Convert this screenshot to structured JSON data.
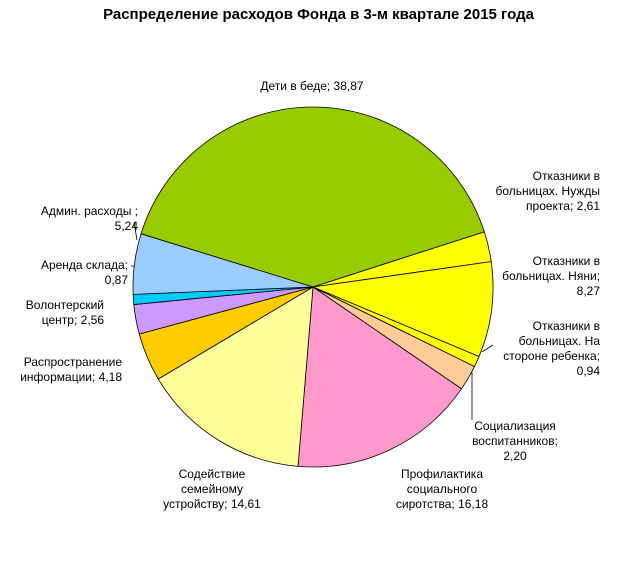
{
  "chart_data": {
    "type": "pie",
    "title": "Распределение расходов Фонда в 3-м квартале 2015 года",
    "slices": [
      {
        "name": "Дети в беде",
        "value": 38.87,
        "label": [
          "Дети в беде; 38,87"
        ],
        "color": "#99CC00"
      },
      {
        "name": "Отказники в больницах. Нужды проекта",
        "value": 2.61,
        "label": [
          "Отказники в",
          "больницах. Нужды",
          "проекта; 2,61"
        ],
        "color": "#FFFF00"
      },
      {
        "name": "Отказники в больницах. Няни",
        "value": 8.27,
        "label": [
          "Отказники в",
          "больницах. Няни;",
          "8,27"
        ],
        "color": "#FFFF00"
      },
      {
        "name": "Отказники в больницах. На стороне ребенка",
        "value": 0.94,
        "label": [
          "Отказники в",
          "больницах. На",
          "стороне ребенка;",
          "0,94"
        ],
        "color": "#FFFF00"
      },
      {
        "name": "Социализация воспитанников",
        "value": 2.2,
        "label": [
          "Социализация",
          "воспитанников;",
          "2,20"
        ],
        "color": "#FFCC99"
      },
      {
        "name": "Профилактика социального сиротства",
        "value": 16.18,
        "label": [
          "Профилактика",
          "социального",
          "сиротства; 16,18"
        ],
        "color": "#FF99CC"
      },
      {
        "name": "Содействие семейному устройству",
        "value": 14.61,
        "label": [
          "Содействие",
          "семейному",
          "устройству; 14,61"
        ],
        "color": "#FFFF99"
      },
      {
        "name": "Распространение информации",
        "value": 4.18,
        "label": [
          "Распространение",
          "информации; 4,18"
        ],
        "color": "#FFCC00"
      },
      {
        "name": "Волонтерский центр",
        "value": 2.56,
        "label": [
          "Волонтерский",
          "центр; 2,56"
        ],
        "color": "#CC99FF"
      },
      {
        "name": "Аренда склада",
        "value": 0.87,
        "label": [
          "Аренда склада;",
          "0,87"
        ],
        "color": "#00CCFF"
      },
      {
        "name": "Админ. расходы",
        "value": 5.24,
        "label": [
          "Админ. расходы ;",
          "5,24"
        ],
        "color": "#99CCFF"
      }
    ]
  }
}
